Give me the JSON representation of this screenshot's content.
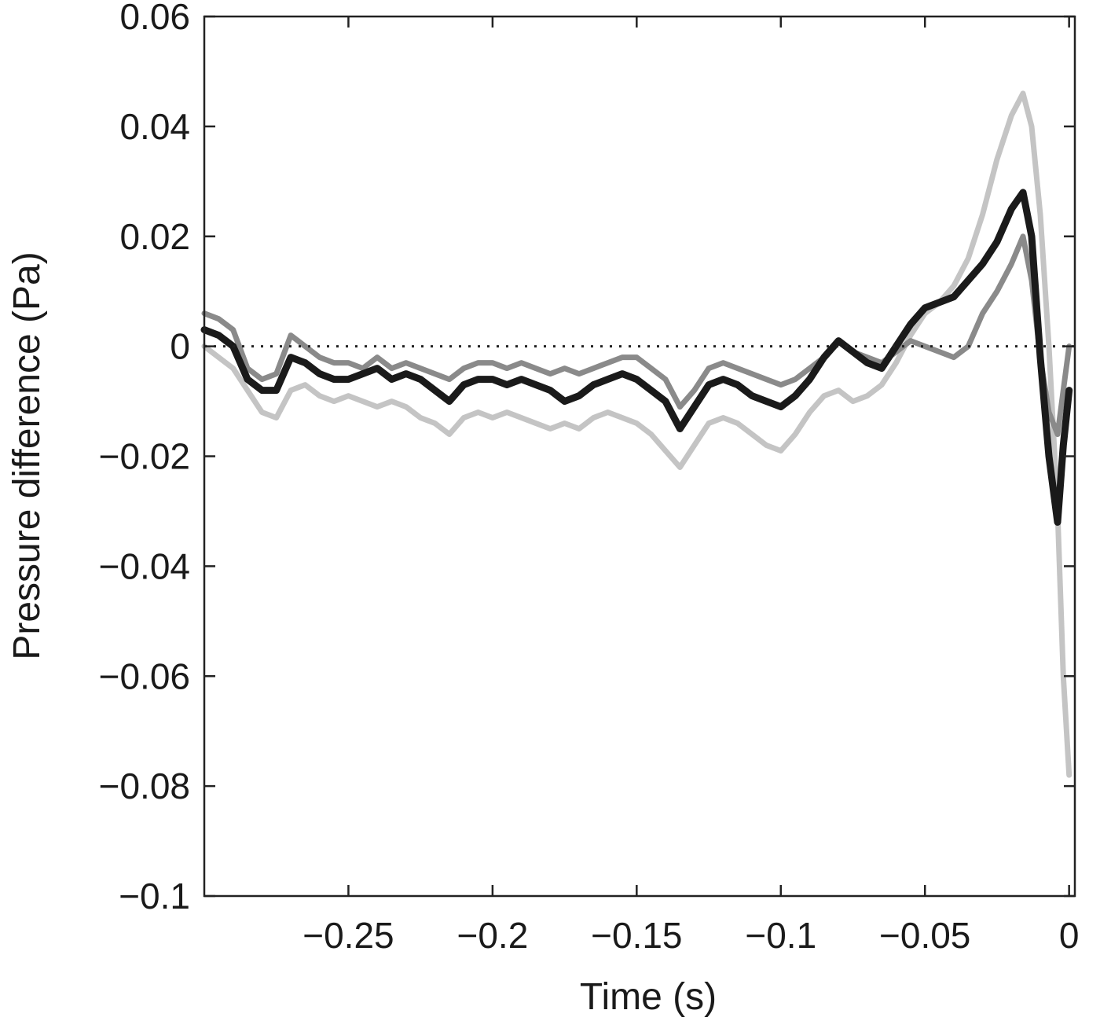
{
  "chart_data": {
    "type": "line",
    "title": "",
    "xlabel": "Time (s)",
    "ylabel": "Pressure difference (Pa)",
    "xlim": [
      -0.3,
      0.002
    ],
    "ylim": [
      -0.1,
      0.06
    ],
    "xticks": [
      -0.25,
      -0.2,
      -0.15,
      -0.1,
      -0.05,
      0
    ],
    "xtick_labels": [
      "−0.25",
      "−0.2",
      "−0.15",
      "−0.1",
      "−0.05",
      "0"
    ],
    "yticks": [
      0.06,
      0.04,
      0.02,
      0,
      -0.02,
      -0.04,
      -0.06,
      -0.08,
      -0.1
    ],
    "ytick_labels": [
      "0.06",
      "0.04",
      "0.02",
      "0",
      "−0.02",
      "−0.04",
      "−0.06",
      "−0.08",
      "−0.1"
    ],
    "grid": false,
    "reference_line": {
      "y": 0,
      "style": "dotted"
    },
    "series": [
      {
        "color": "#c4c4c4",
        "x": [
          -0.3,
          -0.295,
          -0.29,
          -0.285,
          -0.28,
          -0.275,
          -0.27,
          -0.265,
          -0.26,
          -0.255,
          -0.25,
          -0.245,
          -0.24,
          -0.235,
          -0.23,
          -0.225,
          -0.22,
          -0.215,
          -0.21,
          -0.205,
          -0.2,
          -0.195,
          -0.19,
          -0.185,
          -0.18,
          -0.175,
          -0.17,
          -0.165,
          -0.16,
          -0.155,
          -0.15,
          -0.145,
          -0.14,
          -0.135,
          -0.13,
          -0.125,
          -0.12,
          -0.115,
          -0.11,
          -0.105,
          -0.1,
          -0.095,
          -0.09,
          -0.085,
          -0.08,
          -0.075,
          -0.07,
          -0.065,
          -0.06,
          -0.055,
          -0.05,
          -0.045,
          -0.04,
          -0.035,
          -0.03,
          -0.025,
          -0.02,
          -0.016,
          -0.013,
          -0.01,
          -0.007,
          -0.004,
          -0.002,
          0
        ],
        "y": [
          0.0,
          -0.002,
          -0.004,
          -0.008,
          -0.012,
          -0.013,
          -0.008,
          -0.007,
          -0.009,
          -0.01,
          -0.009,
          -0.01,
          -0.011,
          -0.01,
          -0.011,
          -0.013,
          -0.014,
          -0.016,
          -0.013,
          -0.012,
          -0.013,
          -0.012,
          -0.013,
          -0.014,
          -0.015,
          -0.014,
          -0.015,
          -0.013,
          -0.012,
          -0.013,
          -0.014,
          -0.016,
          -0.019,
          -0.022,
          -0.018,
          -0.014,
          -0.013,
          -0.014,
          -0.016,
          -0.018,
          -0.019,
          -0.016,
          -0.012,
          -0.009,
          -0.008,
          -0.01,
          -0.009,
          -0.007,
          -0.003,
          0.002,
          0.006,
          0.008,
          0.011,
          0.016,
          0.024,
          0.034,
          0.042,
          0.046,
          0.04,
          0.024,
          0.0,
          -0.03,
          -0.06,
          -0.078
        ]
      },
      {
        "color": "#8a8a8a",
        "x": [
          -0.3,
          -0.295,
          -0.29,
          -0.285,
          -0.28,
          -0.275,
          -0.27,
          -0.265,
          -0.26,
          -0.255,
          -0.25,
          -0.245,
          -0.24,
          -0.235,
          -0.23,
          -0.225,
          -0.22,
          -0.215,
          -0.21,
          -0.205,
          -0.2,
          -0.195,
          -0.19,
          -0.185,
          -0.18,
          -0.175,
          -0.17,
          -0.165,
          -0.16,
          -0.155,
          -0.15,
          -0.145,
          -0.14,
          -0.135,
          -0.13,
          -0.125,
          -0.12,
          -0.115,
          -0.11,
          -0.105,
          -0.1,
          -0.095,
          -0.09,
          -0.085,
          -0.08,
          -0.075,
          -0.07,
          -0.065,
          -0.06,
          -0.055,
          -0.05,
          -0.045,
          -0.04,
          -0.035,
          -0.03,
          -0.025,
          -0.02,
          -0.016,
          -0.013,
          -0.01,
          -0.007,
          -0.004,
          -0.002,
          0
        ],
        "y": [
          0.006,
          0.005,
          0.003,
          -0.004,
          -0.006,
          -0.005,
          0.002,
          0.0,
          -0.002,
          -0.003,
          -0.003,
          -0.004,
          -0.002,
          -0.004,
          -0.003,
          -0.004,
          -0.005,
          -0.006,
          -0.004,
          -0.003,
          -0.003,
          -0.004,
          -0.003,
          -0.004,
          -0.005,
          -0.004,
          -0.005,
          -0.004,
          -0.003,
          -0.002,
          -0.002,
          -0.004,
          -0.006,
          -0.011,
          -0.008,
          -0.004,
          -0.003,
          -0.004,
          -0.005,
          -0.006,
          -0.007,
          -0.006,
          -0.004,
          -0.002,
          0.001,
          -0.001,
          -0.002,
          -0.003,
          -0.001,
          0.001,
          0.0,
          -0.001,
          -0.002,
          0.0,
          0.006,
          0.01,
          0.015,
          0.02,
          0.012,
          -0.002,
          -0.012,
          -0.016,
          -0.008,
          0.0
        ]
      },
      {
        "color": "#1a1a1a",
        "x": [
          -0.3,
          -0.295,
          -0.29,
          -0.285,
          -0.28,
          -0.275,
          -0.27,
          -0.265,
          -0.26,
          -0.255,
          -0.25,
          -0.245,
          -0.24,
          -0.235,
          -0.23,
          -0.225,
          -0.22,
          -0.215,
          -0.21,
          -0.205,
          -0.2,
          -0.195,
          -0.19,
          -0.185,
          -0.18,
          -0.175,
          -0.17,
          -0.165,
          -0.16,
          -0.155,
          -0.15,
          -0.145,
          -0.14,
          -0.135,
          -0.13,
          -0.125,
          -0.12,
          -0.115,
          -0.11,
          -0.105,
          -0.1,
          -0.095,
          -0.09,
          -0.085,
          -0.08,
          -0.075,
          -0.07,
          -0.065,
          -0.06,
          -0.055,
          -0.05,
          -0.045,
          -0.04,
          -0.035,
          -0.03,
          -0.025,
          -0.02,
          -0.016,
          -0.013,
          -0.01,
          -0.007,
          -0.004,
          -0.002,
          0
        ],
        "y": [
          0.003,
          0.002,
          0.0,
          -0.006,
          -0.008,
          -0.008,
          -0.002,
          -0.003,
          -0.005,
          -0.006,
          -0.006,
          -0.005,
          -0.004,
          -0.006,
          -0.005,
          -0.006,
          -0.008,
          -0.01,
          -0.007,
          -0.006,
          -0.006,
          -0.007,
          -0.006,
          -0.007,
          -0.008,
          -0.01,
          -0.009,
          -0.007,
          -0.006,
          -0.005,
          -0.006,
          -0.008,
          -0.01,
          -0.015,
          -0.011,
          -0.007,
          -0.006,
          -0.007,
          -0.009,
          -0.01,
          -0.011,
          -0.009,
          -0.006,
          -0.002,
          0.001,
          -0.001,
          -0.003,
          -0.004,
          0.0,
          0.004,
          0.007,
          0.008,
          0.009,
          0.012,
          0.015,
          0.019,
          0.025,
          0.028,
          0.02,
          -0.002,
          -0.02,
          -0.032,
          -0.018,
          -0.008
        ]
      }
    ]
  }
}
